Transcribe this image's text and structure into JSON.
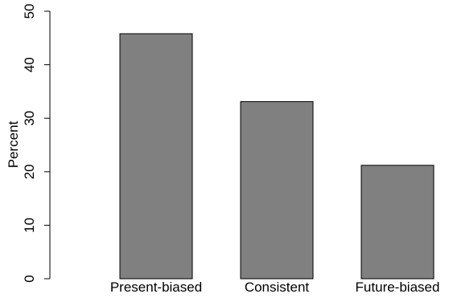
{
  "chart_data": {
    "type": "bar",
    "title": "",
    "xlabel": "",
    "ylabel": "Percent",
    "categories": [
      "Present-biased",
      "Consistent",
      "Future-biased"
    ],
    "values": [
      45.8,
      33.1,
      21.2
    ],
    "ylim": [
      0,
      50
    ],
    "yticks": [
      0,
      10,
      20,
      30,
      40,
      50
    ],
    "grid": false,
    "legend": "none",
    "colors": {
      "bar_fill": "#808080",
      "bar_stroke": "#000000",
      "axis": "#000000",
      "background": "#ffffff"
    }
  }
}
